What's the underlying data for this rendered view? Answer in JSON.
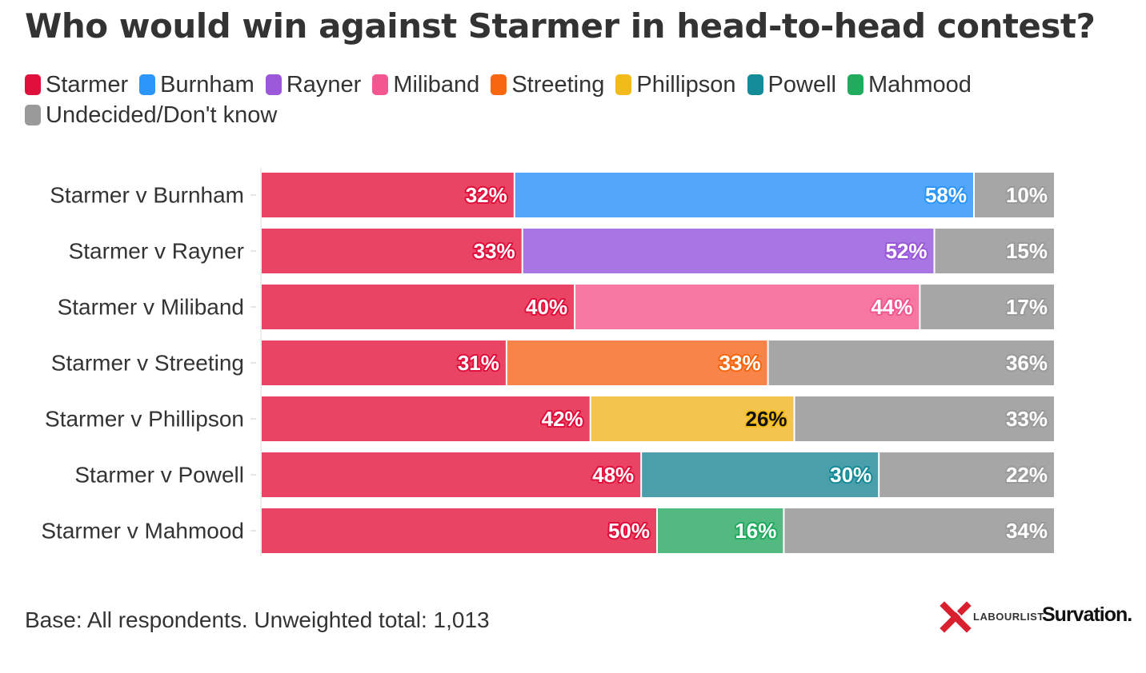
{
  "chart_data": {
    "type": "bar",
    "orientation": "horizontal",
    "stacked": true,
    "title": "Who would win against Starmer in head-to-head contest?",
    "legend": [
      {
        "name": "Starmer",
        "color": "#E0103C"
      },
      {
        "name": "Burnham",
        "color": "#2B96F8"
      },
      {
        "name": "Rayner",
        "color": "#9B59D9"
      },
      {
        "name": "Miliband",
        "color": "#F2578F"
      },
      {
        "name": "Streeting",
        "color": "#F7670F"
      },
      {
        "name": "Phillipson",
        "color": "#F3BB1A"
      },
      {
        "name": "Powell",
        "color": "#138B99"
      },
      {
        "name": "Mahmood",
        "color": "#20AB5E"
      },
      {
        "name": "Undecided/Don't know",
        "color": "#9A9A9A"
      }
    ],
    "rows": [
      {
        "label": "Starmer v Burnham",
        "starmer": 32,
        "challenger": 58,
        "undecided": 10,
        "starmer_label": "32%",
        "challenger_label": "58%",
        "undecided_label": "10%",
        "bar_color": "#54A6FB",
        "text_color": "#2B96F8"
      },
      {
        "label": "Starmer v Rayner",
        "starmer": 33,
        "challenger": 52,
        "undecided": 15,
        "starmer_label": "33%",
        "challenger_label": "52%",
        "undecided_label": "15%",
        "bar_color": "#A876E2",
        "text_color": "#9B59D9"
      },
      {
        "label": "Starmer v Miliband",
        "starmer": 40,
        "challenger": 44,
        "undecided": 17,
        "starmer_label": "40%",
        "challenger_label": "44%",
        "undecided_label": "17%",
        "bar_color": "#F777A3",
        "text_color": "#F2578F"
      },
      {
        "label": "Starmer v Streeting",
        "starmer": 31,
        "challenger": 33,
        "undecided": 36,
        "starmer_label": "31%",
        "challenger_label": "33%",
        "undecided_label": "36%",
        "bar_color": "#F98449",
        "text_color": "#F7670F"
      },
      {
        "label": "Starmer v Phillipson",
        "starmer": 42,
        "challenger": 26,
        "undecided": 33,
        "starmer_label": "42%",
        "challenger_label": "26%",
        "undecided_label": "33%",
        "bar_color": "#F4C54E",
        "text_color": "#F3BB1A",
        "challenger_label_dark": true
      },
      {
        "label": "Starmer v Powell",
        "starmer": 48,
        "challenger": 30,
        "undecided": 22,
        "starmer_label": "48%",
        "challenger_label": "30%",
        "undecided_label": "22%",
        "bar_color": "#4A9FAB",
        "text_color": "#138B99"
      },
      {
        "label": "Starmer v Mahmood",
        "starmer": 50,
        "challenger": 16,
        "undecided": 34,
        "starmer_label": "50%",
        "challenger_label": "16%",
        "undecided_label": "34%",
        "bar_color": "#52BA80",
        "text_color": "#20AB5E"
      }
    ],
    "starmer_bar_color": "#E94463",
    "starmer_text_color": "#E0103C",
    "undecided_bar_color": "#A6A6A6",
    "undecided_text_color": "#9A9A9A",
    "gridlines": false
  },
  "footer": {
    "base_note": "Base: All respondents. Unweighted total: 1,013"
  },
  "logos": {
    "labourlist": "LABOURLIST",
    "survation": "Survation."
  }
}
